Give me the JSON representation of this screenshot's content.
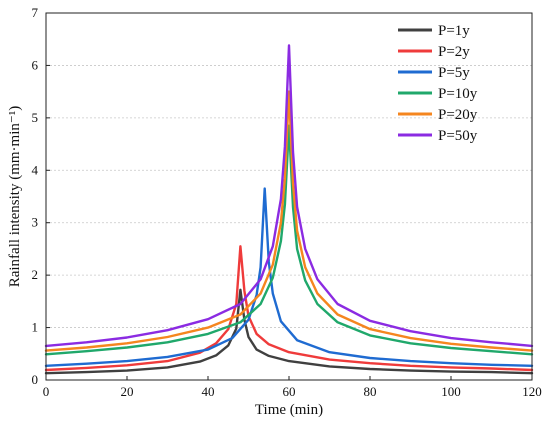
{
  "chart_data": {
    "type": "line",
    "xlabel": "Time (min)",
    "ylabel": "Rainfall intensity (mm·min⁻¹)",
    "xlim": [
      0,
      120
    ],
    "ylim": [
      0,
      7
    ],
    "x_ticks": [
      0,
      20,
      40,
      60,
      80,
      100,
      120
    ],
    "y_ticks": [
      0,
      1,
      2,
      3,
      4,
      5,
      6,
      7
    ],
    "x_tick_labels": [
      "0",
      "20",
      "40",
      "60",
      "80",
      "100",
      "120"
    ],
    "y_tick_labels": [
      "0",
      "1",
      "2",
      "3",
      "4",
      "5",
      "6",
      "7"
    ],
    "grid": "horizontal dotted",
    "legend_position": "top-right",
    "series": [
      {
        "name": "P=1y",
        "color": "#404040",
        "x": [
          0,
          10,
          20,
          30,
          38,
          42,
          45,
          47,
          48,
          49,
          50,
          52,
          55,
          60,
          70,
          80,
          90,
          100,
          110,
          120
        ],
        "y": [
          0.13,
          0.15,
          0.18,
          0.24,
          0.35,
          0.47,
          0.66,
          0.98,
          1.72,
          1.15,
          0.82,
          0.58,
          0.46,
          0.36,
          0.26,
          0.21,
          0.18,
          0.16,
          0.15,
          0.13
        ]
      },
      {
        "name": "P=2y",
        "color": "#ef3b3b",
        "x": [
          0,
          10,
          20,
          30,
          38,
          42,
          45,
          47,
          48,
          49,
          50,
          52,
          55,
          60,
          70,
          80,
          90,
          100,
          110,
          120
        ],
        "y": [
          0.19,
          0.23,
          0.28,
          0.36,
          0.52,
          0.7,
          0.97,
          1.45,
          2.55,
          1.7,
          1.22,
          0.88,
          0.68,
          0.53,
          0.39,
          0.32,
          0.27,
          0.24,
          0.22,
          0.19
        ]
      },
      {
        "name": "P=5y",
        "color": "#1f6bd1",
        "x": [
          0,
          10,
          20,
          30,
          40,
          46,
          50,
          52,
          53,
          54,
          55,
          56,
          58,
          62,
          70,
          80,
          90,
          100,
          110,
          120
        ],
        "y": [
          0.27,
          0.31,
          0.36,
          0.44,
          0.58,
          0.8,
          1.15,
          1.62,
          2.15,
          3.65,
          2.25,
          1.65,
          1.12,
          0.76,
          0.53,
          0.42,
          0.36,
          0.32,
          0.29,
          0.27
        ]
      },
      {
        "name": "P=10y",
        "color": "#20a86b",
        "x": [
          0,
          10,
          20,
          30,
          40,
          48,
          53,
          56,
          58,
          59,
          60,
          61,
          62,
          64,
          67,
          72,
          80,
          90,
          100,
          110,
          120
        ],
        "y": [
          0.49,
          0.55,
          0.62,
          0.72,
          0.88,
          1.1,
          1.45,
          1.95,
          2.65,
          3.35,
          4.85,
          3.3,
          2.5,
          1.9,
          1.45,
          1.1,
          0.85,
          0.7,
          0.61,
          0.55,
          0.49
        ]
      },
      {
        "name": "P=20y",
        "color": "#f5861f",
        "x": [
          0,
          10,
          20,
          30,
          40,
          48,
          53,
          56,
          58,
          59,
          60,
          61,
          62,
          64,
          67,
          72,
          80,
          90,
          100,
          110,
          120
        ],
        "y": [
          0.56,
          0.62,
          0.7,
          0.82,
          1.0,
          1.25,
          1.65,
          2.2,
          3.0,
          3.85,
          5.5,
          3.75,
          2.85,
          2.15,
          1.65,
          1.25,
          0.97,
          0.8,
          0.69,
          0.62,
          0.56
        ]
      },
      {
        "name": "P=50y",
        "color": "#8b2be2",
        "x": [
          0,
          10,
          20,
          30,
          40,
          48,
          53,
          56,
          58,
          59,
          60,
          61,
          62,
          64,
          67,
          72,
          80,
          90,
          100,
          110,
          120
        ],
        "y": [
          0.65,
          0.72,
          0.81,
          0.95,
          1.16,
          1.45,
          1.92,
          2.55,
          3.45,
          4.45,
          6.38,
          4.35,
          3.3,
          2.5,
          1.92,
          1.45,
          1.13,
          0.93,
          0.8,
          0.72,
          0.65
        ]
      }
    ]
  }
}
